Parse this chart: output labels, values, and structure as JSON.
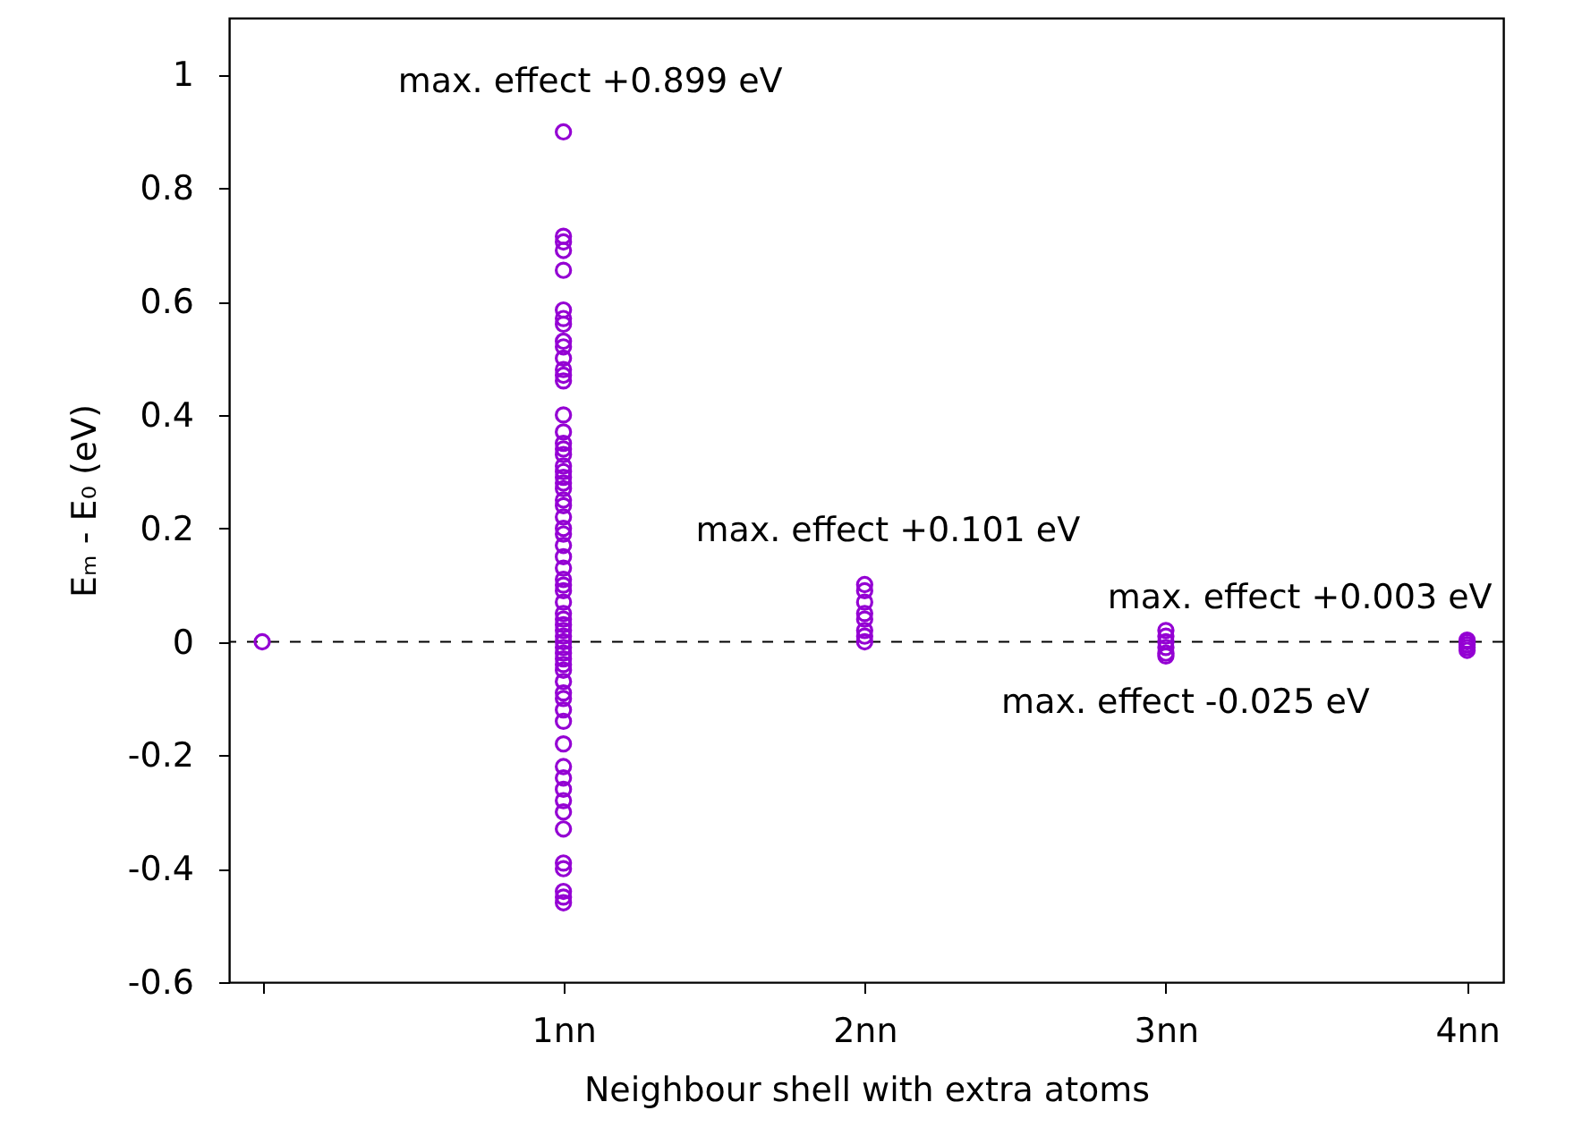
{
  "chart_data": {
    "type": "scatter",
    "xlabel": "Neighbour shell with extra atoms",
    "ylabel": "Eₘ - E₀ (eV)",
    "xlim": [
      -0.11,
      4.12
    ],
    "xticks": [
      {
        "value": 0,
        "label": null
      },
      {
        "value": 1,
        "label": "1nn"
      },
      {
        "value": 2,
        "label": "2nn"
      },
      {
        "value": 3,
        "label": "3nn"
      },
      {
        "value": 4,
        "label": "4nn"
      }
    ],
    "ylim": [
      -0.6,
      1.1
    ],
    "yticks": [
      -0.6,
      -0.4,
      -0.2,
      0,
      0.2,
      0.4,
      0.6,
      0.8,
      1
    ],
    "marker": "circle",
    "grid": false,
    "series": [
      {
        "color": "#9400d3",
        "x": [
          0,
          1,
          1,
          1,
          1,
          1,
          1,
          1,
          1,
          1,
          1,
          1,
          1,
          1,
          1,
          1,
          1,
          1,
          1,
          1,
          1,
          1,
          1,
          1,
          1,
          1,
          1,
          1,
          1,
          1,
          1,
          1,
          1,
          1,
          1,
          1,
          1,
          1,
          1,
          1,
          1,
          1,
          1,
          1,
          1,
          1,
          1,
          1,
          1,
          1,
          1,
          1,
          1,
          1,
          1,
          1,
          1,
          1,
          1,
          1,
          1,
          1,
          1,
          1,
          1,
          2,
          2,
          2,
          2,
          2,
          2,
          2,
          2,
          3,
          3,
          3,
          3,
          3,
          3,
          4,
          4,
          4,
          4,
          4
        ],
        "values": [
          0,
          0.899,
          0.715,
          0.705,
          0.69,
          0.655,
          0.585,
          0.57,
          0.56,
          0.53,
          0.52,
          0.5,
          0.48,
          0.47,
          0.46,
          0.4,
          0.37,
          0.35,
          0.34,
          0.33,
          0.31,
          0.3,
          0.29,
          0.28,
          0.27,
          0.25,
          0.24,
          0.22,
          0.2,
          0.19,
          0.17,
          0.15,
          0.13,
          0.11,
          0.1,
          0.09,
          0.07,
          0.05,
          0.04,
          0.03,
          0.02,
          0.01,
          0,
          -0.01,
          -0.02,
          -0.03,
          -0.04,
          -0.05,
          -0.07,
          -0.09,
          -0.1,
          -0.12,
          -0.14,
          -0.18,
          -0.22,
          -0.24,
          -0.26,
          -0.28,
          -0.3,
          -0.33,
          -0.39,
          -0.4,
          -0.44,
          -0.45,
          -0.46,
          0.101,
          0.09,
          0.07,
          0.05,
          0.04,
          0.02,
          0.01,
          0,
          0.02,
          0.01,
          0,
          -0.01,
          -0.02,
          -0.025,
          0.003,
          0,
          -0.005,
          -0.01,
          -0.015
        ]
      }
    ],
    "ref_lines": [
      {
        "axis": "y",
        "value": 0,
        "color": "#000000",
        "line_style": "dashed"
      }
    ],
    "annotations": [
      {
        "text": "max. effect +0.899 eV",
        "x": 1,
        "y": 0.899
      },
      {
        "text": "max. effect +0.101 eV",
        "x": 2,
        "y": 0.101
      },
      {
        "text": "max. effect -0.025 eV",
        "x": 3,
        "y": -0.025
      },
      {
        "text": "max. effect +0.003 eV",
        "x": 4,
        "y": 0.003
      }
    ]
  }
}
